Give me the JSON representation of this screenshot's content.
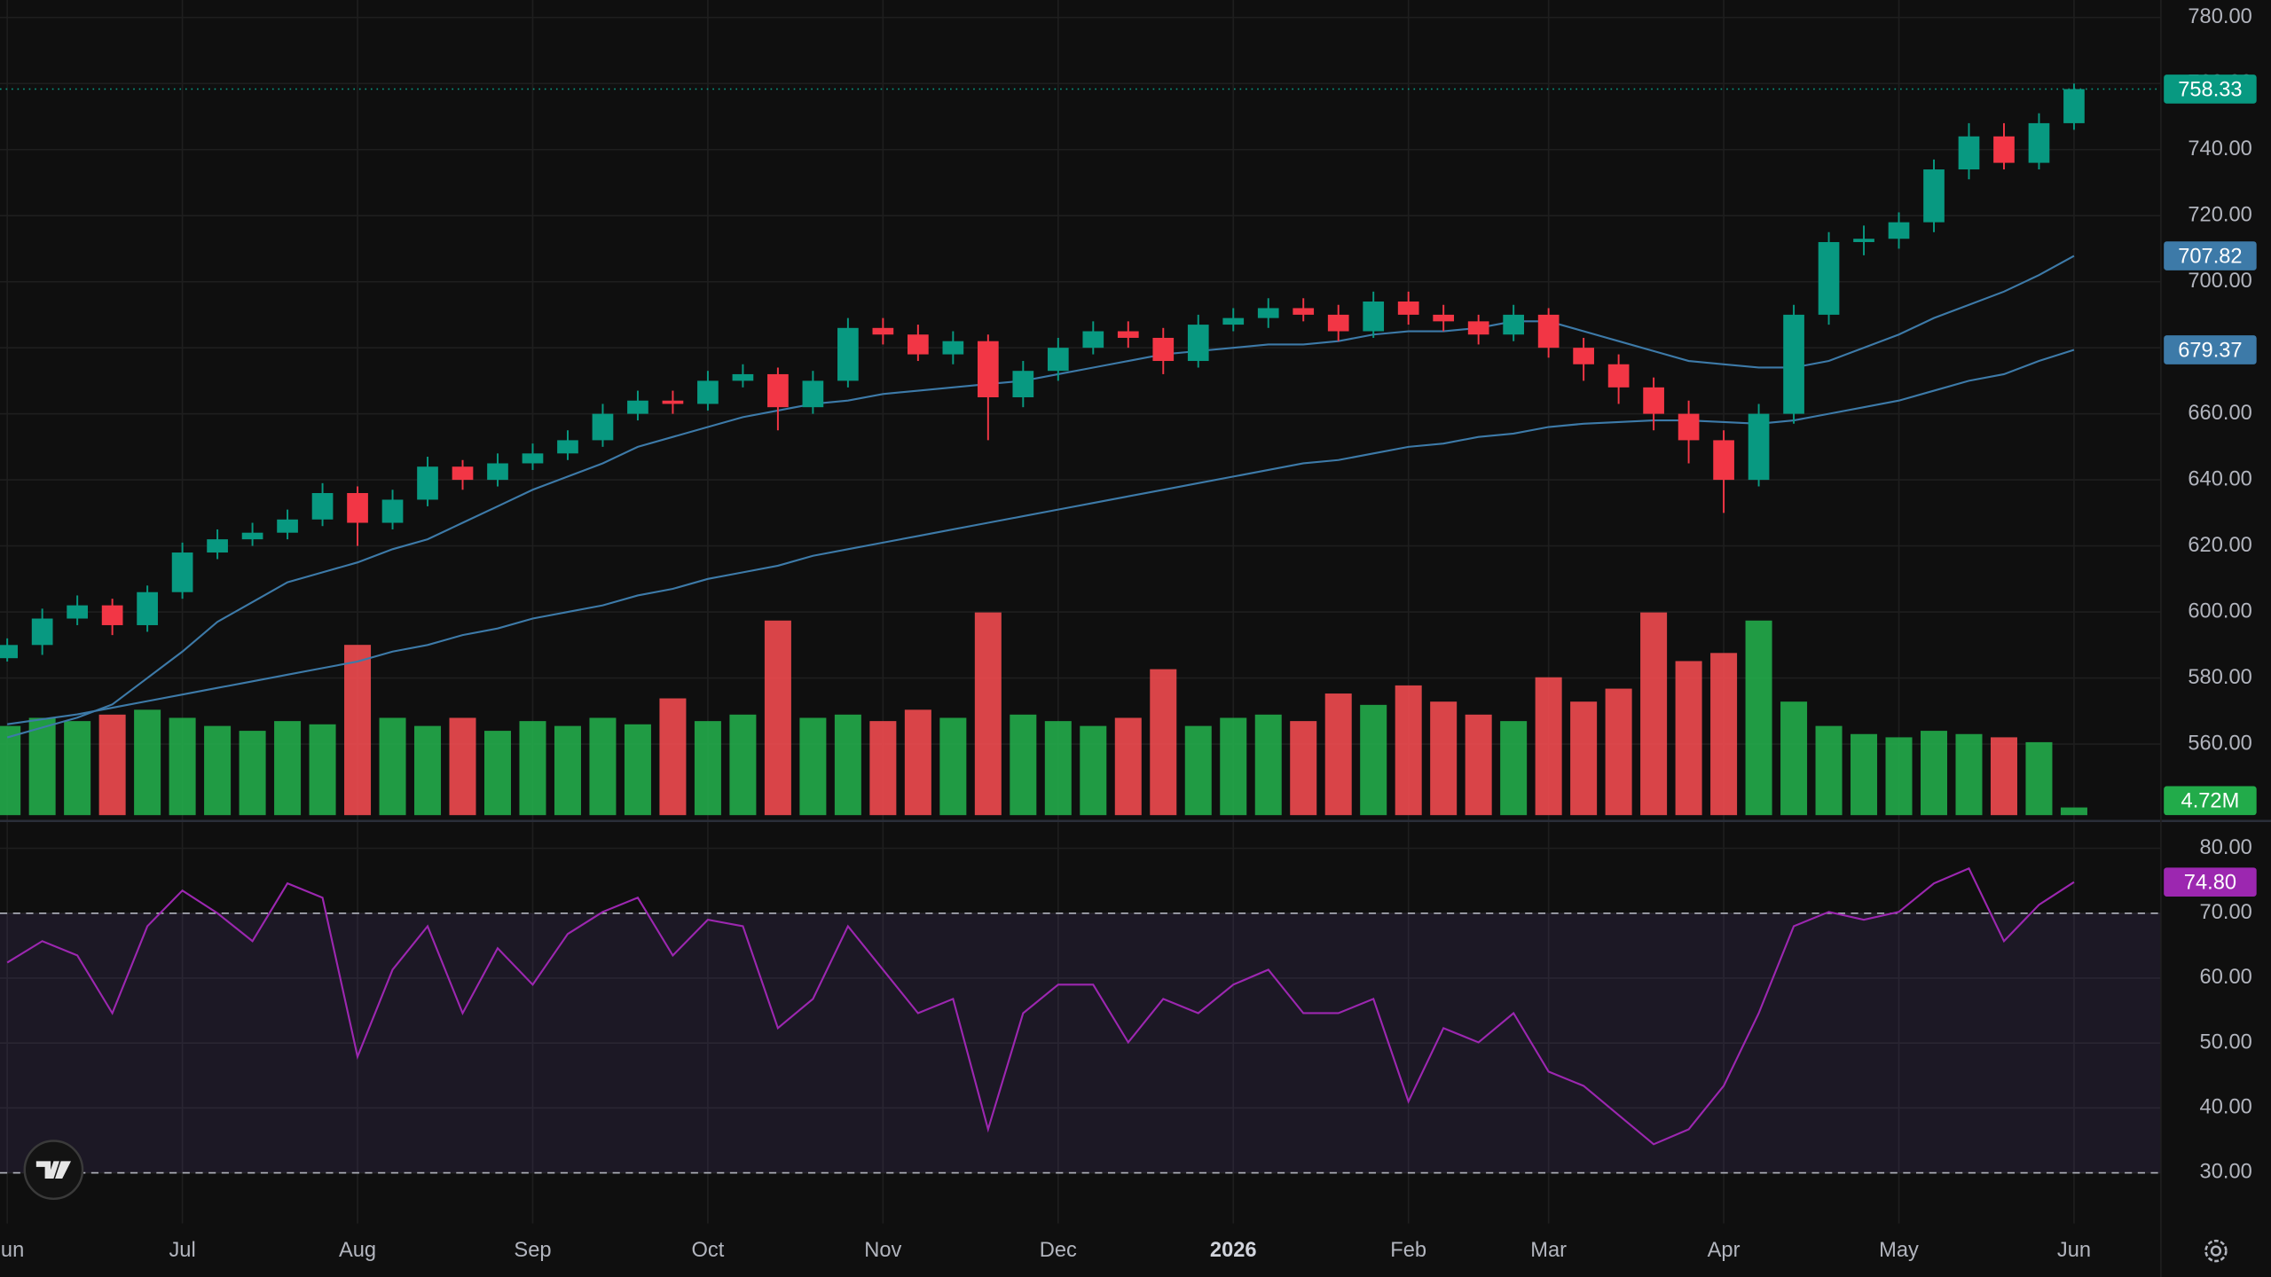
{
  "chart_data": {
    "type": "candlestick",
    "categories": [
      "Jun",
      null,
      null,
      null,
      null,
      "Jul",
      null,
      null,
      null,
      null,
      "Aug",
      null,
      null,
      null,
      null,
      "Sep",
      null,
      null,
      null,
      null,
      "Oct",
      null,
      null,
      null,
      null,
      "Nov",
      null,
      null,
      null,
      null,
      "Dec",
      null,
      null,
      null,
      null,
      "2026",
      null,
      null,
      null,
      null,
      "Feb",
      null,
      null,
      null,
      "Mar",
      null,
      null,
      null,
      null,
      "Apr",
      null,
      null,
      null,
      null,
      "May",
      null,
      null,
      null,
      null,
      "Jun"
    ],
    "ohlc": {
      "up_color": "#089981",
      "down_color": "#f23645",
      "open": [
        586,
        590,
        598,
        602,
        596,
        606,
        618,
        622,
        624,
        628,
        636,
        627,
        634,
        644,
        640,
        645,
        648,
        652,
        660,
        664,
        663,
        670,
        672,
        662,
        670,
        686,
        684,
        678,
        682,
        665,
        673,
        680,
        685,
        683,
        676,
        687,
        689,
        692,
        690,
        685,
        694,
        690,
        688,
        684,
        690,
        680,
        675,
        668,
        660,
        652,
        640,
        660,
        690,
        712,
        713,
        718,
        734,
        744,
        736,
        748
      ],
      "high": [
        592,
        601,
        605,
        604,
        608,
        621,
        625,
        627,
        631,
        639,
        638,
        637,
        647,
        646,
        648,
        651,
        655,
        663,
        667,
        667,
        673,
        675,
        674,
        673,
        689,
        689,
        687,
        685,
        684,
        676,
        683,
        688,
        688,
        686,
        690,
        692,
        695,
        695,
        693,
        697,
        697,
        693,
        690,
        693,
        692,
        683,
        678,
        671,
        664,
        655,
        663,
        693,
        715,
        717,
        721,
        737,
        748,
        748,
        751,
        760
      ],
      "low": [
        585,
        587,
        596,
        593,
        594,
        604,
        616,
        620,
        622,
        626,
        620,
        625,
        632,
        637,
        638,
        643,
        646,
        650,
        658,
        660,
        661,
        668,
        655,
        660,
        668,
        681,
        676,
        675,
        652,
        662,
        670,
        678,
        680,
        672,
        674,
        685,
        686,
        688,
        682,
        683,
        687,
        685,
        681,
        682,
        677,
        670,
        663,
        655,
        645,
        630,
        638,
        657,
        687,
        708,
        710,
        715,
        731,
        734,
        734,
        746
      ],
      "close": [
        590,
        598,
        602,
        596,
        606,
        618,
        622,
        624,
        628,
        636,
        627,
        634,
        644,
        640,
        645,
        648,
        652,
        660,
        664,
        663,
        670,
        672,
        662,
        670,
        686,
        684,
        678,
        682,
        665,
        673,
        680,
        685,
        683,
        676,
        687,
        689,
        692,
        690,
        685,
        694,
        690,
        688,
        684,
        690,
        680,
        675,
        668,
        660,
        652,
        640,
        660,
        690,
        712,
        713,
        718,
        734,
        744,
        736,
        748,
        758.33
      ]
    },
    "moving_averages": [
      {
        "color": "#3d7aa8",
        "values": [
          562,
          565,
          568,
          572,
          580,
          588,
          597,
          603,
          609,
          612,
          615,
          619,
          622,
          627,
          632,
          637,
          641,
          645,
          650,
          653,
          656,
          659,
          661,
          663,
          664,
          666,
          667,
          668,
          669,
          670,
          672,
          674,
          676,
          678,
          679,
          680,
          681,
          681,
          682,
          684,
          685,
          685,
          686,
          688,
          688,
          685,
          682,
          679,
          676,
          675,
          674,
          674,
          676,
          680,
          684,
          689,
          693,
          697,
          702,
          707.82
        ]
      },
      {
        "color": "#3d7aa8",
        "values": [
          566,
          567.5,
          569,
          571,
          573,
          575,
          577,
          579,
          581,
          583,
          585,
          588,
          590,
          593,
          595,
          598,
          600,
          602,
          605,
          607,
          610,
          612,
          614,
          617,
          619,
          621,
          623,
          625,
          627,
          629,
          631,
          633,
          635,
          637,
          639,
          641,
          643,
          645,
          646,
          648,
          650,
          651,
          653,
          654,
          656,
          657,
          657.5,
          658,
          658,
          657.5,
          657,
          658,
          660,
          662,
          664,
          667,
          670,
          672,
          676,
          679.37
        ]
      }
    ],
    "ylim": [
      537.6,
      785.3
    ],
    "yticks": [
      {
        "value": 560,
        "label": "560.00"
      },
      {
        "value": 580,
        "label": "580.00"
      },
      {
        "value": 600,
        "label": "600.00"
      },
      {
        "value": 620,
        "label": "620.00"
      },
      {
        "value": 640,
        "label": "640.00"
      },
      {
        "value": 660,
        "label": "660.00"
      },
      {
        "value": 680,
        "label": "680.00"
      },
      {
        "value": 700,
        "label": "700.00"
      },
      {
        "value": 720,
        "label": "720.00"
      },
      {
        "value": 740,
        "label": "740.00"
      },
      {
        "value": 760,
        "label": "760.00"
      },
      {
        "value": 780,
        "label": "780.00"
      }
    ],
    "volume": {
      "up_color": "#22ab4a",
      "down_color": "#f04a4f",
      "last_label": "4.72M",
      "values": [
        55,
        60,
        58,
        62,
        65,
        60,
        55,
        52,
        58,
        56,
        105,
        60,
        55,
        60,
        52,
        58,
        55,
        60,
        56,
        72,
        58,
        62,
        120,
        60,
        62,
        58,
        65,
        60,
        125,
        62,
        58,
        55,
        60,
        90,
        55,
        60,
        62,
        58,
        75,
        68,
        80,
        70,
        62,
        58,
        85,
        70,
        78,
        125,
        95,
        100,
        120,
        70,
        55,
        50,
        48,
        52,
        50,
        48,
        45,
        4.72
      ]
    },
    "rsi": {
      "color": "#9c27b0",
      "fill": "#7e57c2",
      "ylim": [
        22.2,
        84
      ],
      "levels": [
        30,
        70
      ],
      "last_label": "74.80",
      "yticks": [
        {
          "value": 30,
          "label": "30.00"
        },
        {
          "value": 40,
          "label": "40.00"
        },
        {
          "value": 50,
          "label": "50.00"
        },
        {
          "value": 60,
          "label": "60.00"
        },
        {
          "value": 70,
          "label": "70.00"
        },
        {
          "value": 80,
          "label": "80.00"
        }
      ],
      "values": [
        62.4,
        65.7,
        63.5,
        54.6,
        68,
        73.5,
        70,
        65.7,
        74.6,
        72.4,
        47.9,
        61.3,
        68,
        54.6,
        64.6,
        59,
        66.8,
        70.2,
        72.4,
        63.5,
        69,
        68,
        52.3,
        56.8,
        68,
        61.3,
        54.6,
        56.8,
        36.7,
        54.6,
        59,
        59,
        50.1,
        56.8,
        54.6,
        59,
        61.3,
        54.6,
        54.6,
        56.8,
        41,
        52.3,
        50.1,
        54.6,
        45.6,
        43.4,
        38.9,
        34.4,
        36.7,
        43.4,
        54.6,
        68,
        70.2,
        69,
        70.2,
        74.6,
        76.9,
        65.7,
        71.3,
        74.8
      ]
    },
    "grid": true
  }
}
